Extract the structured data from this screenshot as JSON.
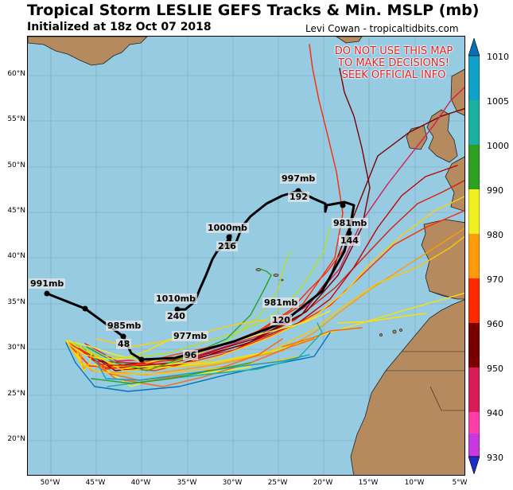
{
  "title": "Tropical Storm LESLIE GEFS Tracks & Min. MSLP (mb)",
  "subtitle": "Initialized at 18z Oct 07 2018",
  "credit": "Levi Cowan - tropicaltidbits.com",
  "warning": [
    "DO NOT USE THIS MAP",
    "TO MAKE DECISIONS!",
    "SEEK OFFICIAL INFO"
  ],
  "lat_ticks": [
    "60°N",
    "55°N",
    "50°N",
    "45°N",
    "40°N",
    "35°N",
    "30°N",
    "25°N",
    "20°N"
  ],
  "lon_ticks": [
    "50°W",
    "45°W",
    "40°W",
    "35°W",
    "30°W",
    "25°W",
    "20°W",
    "15°W",
    "10°W",
    "5°W"
  ],
  "colorbar": {
    "ticks": [
      "1010",
      "1005",
      "1000",
      "990",
      "980",
      "970",
      "960",
      "950",
      "940",
      "930"
    ],
    "colors": [
      "#1a2ec9",
      "#5a4de8",
      "#c83adf",
      "#ff3fa8",
      "#d91b58",
      "#7a0000",
      "#d42010",
      "#ff2a00",
      "#ff6600",
      "#ff9a0a",
      "#ffc600",
      "#f0f020",
      "#b6e020",
      "#2ea020",
      "#1cb0a0",
      "#10a0c8",
      "#0870b8"
    ]
  },
  "labels": {
    "p991": "991mb",
    "p985": "985mb",
    "h48": "48",
    "p977": "977mb",
    "h96": "96",
    "p981a": "981mb",
    "h120": "120",
    "p1010": "1010mb",
    "h240": "240",
    "p1000": "1000mb",
    "h216": "216",
    "p997": "997mb",
    "h192": "192",
    "p981b": "981mb",
    "h144": "144"
  },
  "colors": {
    "ocean": "#96cbe2",
    "land": "#b48a5e",
    "mean_track": "#000000"
  }
}
